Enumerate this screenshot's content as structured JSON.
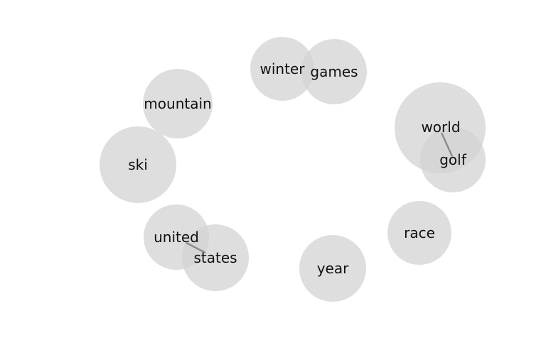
{
  "colors": {
    "bubble": "#d3d3d3",
    "edge": "#808080",
    "text": "#111111",
    "background": "#ffffff"
  },
  "terms": {
    "winter": "winter",
    "games": "games",
    "mountain": "mountain",
    "world": "world",
    "golf": "golf",
    "ski": "ski",
    "united": "united",
    "states": "states",
    "race": "race",
    "year": "year"
  },
  "links": [
    {
      "from": "world",
      "to": "golf"
    },
    {
      "from": "united",
      "to": "states"
    }
  ]
}
